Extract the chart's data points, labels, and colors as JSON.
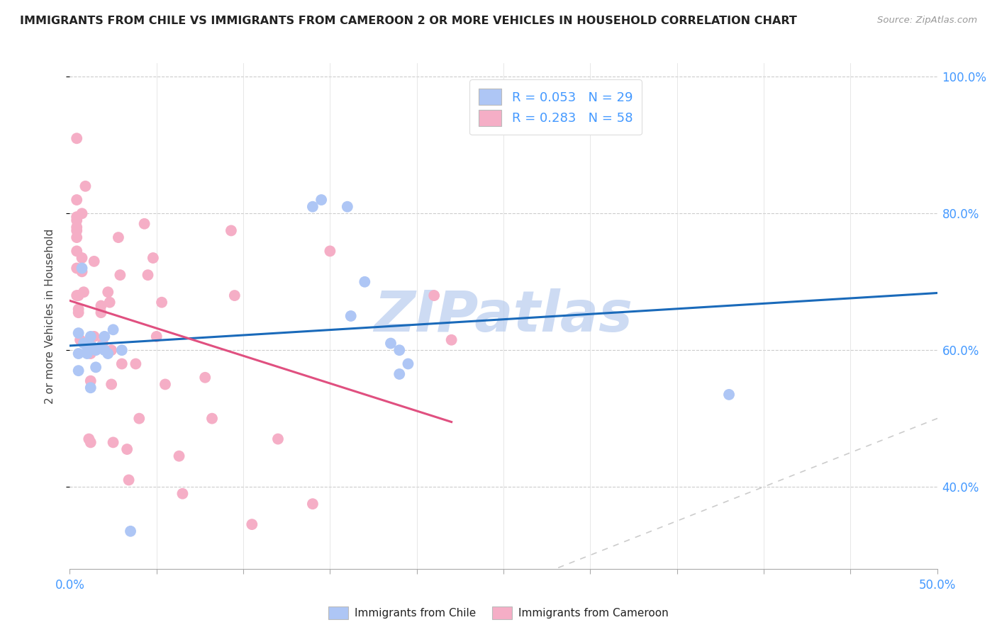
{
  "title": "IMMIGRANTS FROM CHILE VS IMMIGRANTS FROM CAMEROON 2 OR MORE VEHICLES IN HOUSEHOLD CORRELATION CHART",
  "source": "Source: ZipAtlas.com",
  "ylabel": "2 or more Vehicles in Household",
  "xlim": [
    0.0,
    0.5
  ],
  "ylim": [
    0.28,
    1.02
  ],
  "xticks": [
    0.0,
    0.05,
    0.1,
    0.15,
    0.2,
    0.25,
    0.3,
    0.35,
    0.4,
    0.45,
    0.5
  ],
  "yticks": [
    0.4,
    0.6,
    0.8,
    1.0
  ],
  "chile_color": "#aec6f5",
  "cameroon_color": "#f5aec6",
  "chile_R": 0.053,
  "chile_N": 29,
  "cameroon_R": 0.283,
  "cameroon_N": 58,
  "legend_label_chile": "R = 0.053   N = 29",
  "legend_label_cameroon": "R = 0.283   N = 58",
  "trend_chile_color": "#1a6aba",
  "trend_cameroon_color": "#e05080",
  "diagonal_color": "#cccccc",
  "watermark": "ZIPatlas",
  "watermark_color": "#b8ccee",
  "chile_x": [
    0.005,
    0.005,
    0.005,
    0.007,
    0.008,
    0.01,
    0.01,
    0.012,
    0.012,
    0.013,
    0.015,
    0.015,
    0.018,
    0.02,
    0.02,
    0.022,
    0.025,
    0.03,
    0.035,
    0.14,
    0.145,
    0.16,
    0.162,
    0.17,
    0.185,
    0.19,
    0.19,
    0.195,
    0.38
  ],
  "chile_y": [
    0.625,
    0.595,
    0.57,
    0.72,
    0.61,
    0.605,
    0.595,
    0.62,
    0.545,
    0.605,
    0.6,
    0.575,
    0.605,
    0.6,
    0.62,
    0.595,
    0.63,
    0.6,
    0.335,
    0.81,
    0.82,
    0.81,
    0.65,
    0.7,
    0.61,
    0.6,
    0.565,
    0.58,
    0.535
  ],
  "cameroon_x": [
    0.004,
    0.004,
    0.004,
    0.004,
    0.004,
    0.004,
    0.004,
    0.004,
    0.004,
    0.004,
    0.005,
    0.005,
    0.005,
    0.006,
    0.007,
    0.007,
    0.007,
    0.008,
    0.009,
    0.011,
    0.012,
    0.012,
    0.012,
    0.014,
    0.014,
    0.018,
    0.018,
    0.019,
    0.022,
    0.023,
    0.024,
    0.024,
    0.025,
    0.028,
    0.029,
    0.03,
    0.033,
    0.034,
    0.038,
    0.04,
    0.043,
    0.045,
    0.048,
    0.05,
    0.053,
    0.055,
    0.063,
    0.065,
    0.078,
    0.082,
    0.093,
    0.095,
    0.105,
    0.12,
    0.14,
    0.15,
    0.21,
    0.22
  ],
  "cameroon_y": [
    0.91,
    0.82,
    0.795,
    0.79,
    0.78,
    0.775,
    0.765,
    0.745,
    0.72,
    0.68,
    0.68,
    0.66,
    0.655,
    0.615,
    0.8,
    0.735,
    0.715,
    0.685,
    0.84,
    0.47,
    0.595,
    0.555,
    0.465,
    0.62,
    0.73,
    0.665,
    0.655,
    0.61,
    0.685,
    0.67,
    0.6,
    0.55,
    0.465,
    0.765,
    0.71,
    0.58,
    0.455,
    0.41,
    0.58,
    0.5,
    0.785,
    0.71,
    0.735,
    0.62,
    0.67,
    0.55,
    0.445,
    0.39,
    0.56,
    0.5,
    0.775,
    0.68,
    0.345,
    0.47,
    0.375,
    0.745,
    0.68,
    0.615
  ]
}
